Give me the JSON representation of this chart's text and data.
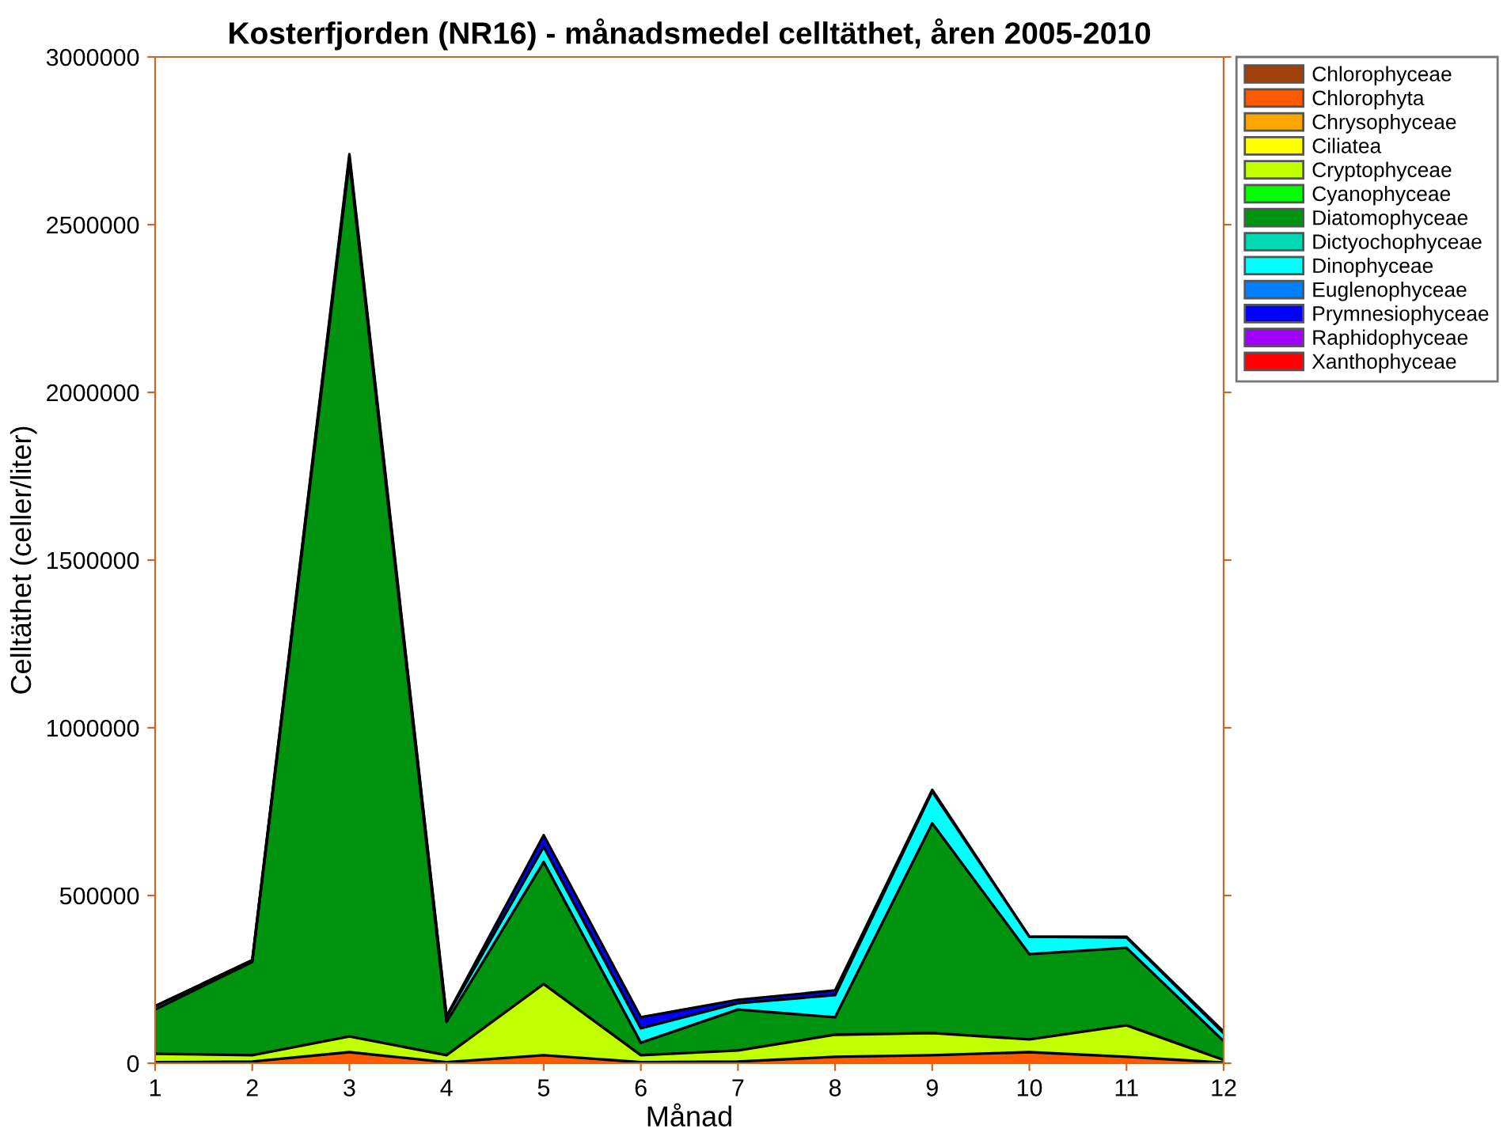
{
  "chart_data": {
    "type": "area",
    "stacked": true,
    "title": "Kosterfjorden (NR16) - månadsmedel celltäthet, åren 2005-2010",
    "xlabel": "Månad",
    "ylabel": "Celltäthet (celler/liter)",
    "x": [
      1,
      2,
      3,
      4,
      5,
      6,
      7,
      8,
      9,
      10,
      11,
      12
    ],
    "xlim": [
      1,
      12
    ],
    "xticks": [
      1,
      2,
      3,
      4,
      5,
      6,
      7,
      8,
      9,
      10,
      11,
      12
    ],
    "ylim": [
      0,
      3000000
    ],
    "yticks": [
      0,
      500000,
      1000000,
      1500000,
      2000000,
      2500000,
      3000000
    ],
    "grid": false,
    "legend": "top right",
    "series": [
      {
        "name": "Chlorophyceae",
        "color": "#a0400a",
        "values": [
          null,
          null,
          null,
          null,
          null,
          null,
          null,
          null,
          null,
          null,
          null,
          null
        ]
      },
      {
        "name": "Chlorophyta",
        "color": "#ff5a00",
        "values": [
          3000,
          5000,
          33000,
          3000,
          24000,
          3000,
          5000,
          19000,
          24000,
          33000,
          19000,
          2000
        ]
      },
      {
        "name": "Chrysophyceae",
        "color": "#ffa500",
        "values": [
          null,
          null,
          null,
          null,
          null,
          null,
          null,
          null,
          null,
          null,
          null,
          null
        ]
      },
      {
        "name": "Ciliatea",
        "color": "#ffff00",
        "values": [
          null,
          null,
          null,
          null,
          null,
          null,
          null,
          null,
          null,
          null,
          null,
          null
        ]
      },
      {
        "name": "Cryptophyceae",
        "color": "#bfff00",
        "values": [
          25000,
          19000,
          47000,
          21000,
          212000,
          21000,
          33000,
          66000,
          66000,
          38000,
          94000,
          8000
        ]
      },
      {
        "name": "Cyanophyceae",
        "color": "#00ff00",
        "values": [
          null,
          null,
          null,
          null,
          null,
          null,
          null,
          null,
          null,
          null,
          null,
          null
        ]
      },
      {
        "name": "Diatomophyceae",
        "color": "#00930f",
        "values": [
          132000,
          278000,
          2610000,
          99000,
          364000,
          37000,
          122000,
          52000,
          625000,
          254000,
          231000,
          56000
        ]
      },
      {
        "name": "Dictyochophyceae",
        "color": "#00d8b4",
        "values": [
          null,
          null,
          null,
          null,
          null,
          null,
          null,
          null,
          null,
          null,
          null,
          null
        ]
      },
      {
        "name": "Dinophyceae",
        "color": "#00ffff",
        "values": [
          10000,
          5000,
          10000,
          15000,
          45000,
          43000,
          19000,
          66000,
          95000,
          52000,
          31000,
          23000
        ]
      },
      {
        "name": "Euglenophyceae",
        "color": "#0080ff",
        "values": [
          null,
          null,
          null,
          null,
          null,
          null,
          null,
          null,
          null,
          null,
          null,
          null
        ]
      },
      {
        "name": "Prymnesiophyceae",
        "color": "#0000ff",
        "values": [
          0,
          0,
          10000,
          2000,
          35000,
          33000,
          10000,
          14000,
          5000,
          0,
          2000,
          5000
        ]
      },
      {
        "name": "Raphidophyceae",
        "color": "#a000ff",
        "values": [
          null,
          null,
          null,
          null,
          null,
          null,
          null,
          null,
          null,
          null,
          null,
          null
        ]
      },
      {
        "name": "Xanthophyceae",
        "color": "#ff0000",
        "values": [
          null,
          null,
          null,
          null,
          null,
          null,
          null,
          null,
          null,
          null,
          null,
          null
        ]
      }
    ]
  }
}
